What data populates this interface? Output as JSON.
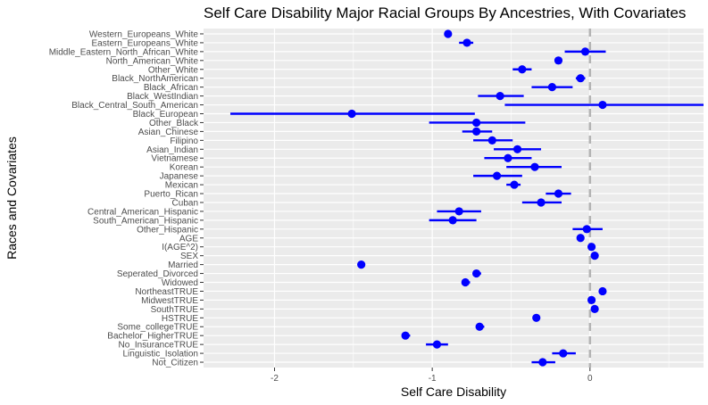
{
  "chart_data": {
    "type": "dot-whisker",
    "title": "Self Care Disability Major Racial Groups By Ancestries, With Covariates",
    "xlabel": "Self Care Disability",
    "ylabel": "Races and Covariates",
    "xlim": [
      -2.45,
      0.72
    ],
    "xticks": [
      -2,
      -1,
      0
    ],
    "reference_line": 0,
    "grid": true,
    "colors": {
      "panel": "#ebebeb",
      "grid": "#ffffff",
      "marker": "#0000ff",
      "reference": "#b3b3b3"
    },
    "points": [
      {
        "label": "Western_Europeans_White",
        "estimate": -0.9,
        "lower": -0.9,
        "upper": -0.9
      },
      {
        "label": "Eastern_Europeans_White",
        "estimate": -0.78,
        "lower": -0.83,
        "upper": -0.74
      },
      {
        "label": "Middle_Eastern_North_African_White",
        "estimate": -0.03,
        "lower": -0.16,
        "upper": 0.1
      },
      {
        "label": "North_American_White",
        "estimate": -0.2,
        "lower": -0.22,
        "upper": -0.18
      },
      {
        "label": "Other_White",
        "estimate": -0.43,
        "lower": -0.49,
        "upper": -0.37
      },
      {
        "label": "Black_NorthAmerican",
        "estimate": -0.06,
        "lower": -0.09,
        "upper": -0.03
      },
      {
        "label": "Black_African",
        "estimate": -0.24,
        "lower": -0.37,
        "upper": -0.11
      },
      {
        "label": "Black_WestIndian",
        "estimate": -0.57,
        "lower": -0.71,
        "upper": -0.42
      },
      {
        "label": "Black_Central_South_American",
        "estimate": 0.08,
        "lower": -0.54,
        "upper": 0.72
      },
      {
        "label": "Black_European",
        "estimate": -1.51,
        "lower": -2.28,
        "upper": -0.73
      },
      {
        "label": "Other_Black",
        "estimate": -0.72,
        "lower": -1.02,
        "upper": -0.41
      },
      {
        "label": "Asian_Chinese",
        "estimate": -0.72,
        "lower": -0.81,
        "upper": -0.62
      },
      {
        "label": "Filipino",
        "estimate": -0.62,
        "lower": -0.74,
        "upper": -0.49
      },
      {
        "label": "Asian_Indian",
        "estimate": -0.46,
        "lower": -0.61,
        "upper": -0.31
      },
      {
        "label": "Vietnamese",
        "estimate": -0.52,
        "lower": -0.67,
        "upper": -0.37
      },
      {
        "label": "Korean",
        "estimate": -0.35,
        "lower": -0.53,
        "upper": -0.18
      },
      {
        "label": "Japanese",
        "estimate": -0.59,
        "lower": -0.74,
        "upper": -0.43
      },
      {
        "label": "Mexican",
        "estimate": -0.48,
        "lower": -0.53,
        "upper": -0.44
      },
      {
        "label": "Puerto_Rican",
        "estimate": -0.2,
        "lower": -0.28,
        "upper": -0.12
      },
      {
        "label": "Cuban",
        "estimate": -0.31,
        "lower": -0.43,
        "upper": -0.18
      },
      {
        "label": "Central_American_Hispanic",
        "estimate": -0.83,
        "lower": -0.97,
        "upper": -0.69
      },
      {
        "label": "South_American_Hispanic",
        "estimate": -0.87,
        "lower": -1.02,
        "upper": -0.72
      },
      {
        "label": "Other_Hispanic",
        "estimate": -0.02,
        "lower": -0.11,
        "upper": 0.08
      },
      {
        "label": "AGE",
        "estimate": -0.06,
        "lower": -0.06,
        "upper": -0.06
      },
      {
        "label": "I(AGE^2)",
        "estimate": 0.01,
        "lower": 0.01,
        "upper": 0.01
      },
      {
        "label": "SEX",
        "estimate": 0.03,
        "lower": 0.03,
        "upper": 0.03
      },
      {
        "label": "Married",
        "estimate": -1.45,
        "lower": -1.45,
        "upper": -1.45
      },
      {
        "label": "Seperated_Divorced",
        "estimate": -0.72,
        "lower": -0.74,
        "upper": -0.69
      },
      {
        "label": "Widowed",
        "estimate": -0.79,
        "lower": -0.81,
        "upper": -0.76
      },
      {
        "label": "NortheastTRUE",
        "estimate": 0.08,
        "lower": 0.06,
        "upper": 0.1
      },
      {
        "label": "MidwestTRUE",
        "estimate": 0.01,
        "lower": -0.01,
        "upper": 0.03
      },
      {
        "label": "SouthTRUE",
        "estimate": 0.03,
        "lower": 0.01,
        "upper": 0.04
      },
      {
        "label": "HSTRUE",
        "estimate": -0.34,
        "lower": -0.35,
        "upper": -0.32
      },
      {
        "label": "Some_collegeTRUE",
        "estimate": -0.7,
        "lower": -0.72,
        "upper": -0.67
      },
      {
        "label": "Bachelor_HigherTRUE",
        "estimate": -1.17,
        "lower": -1.19,
        "upper": -1.14
      },
      {
        "label": "No_InsuranceTRUE",
        "estimate": -0.97,
        "lower": -1.04,
        "upper": -0.9
      },
      {
        "label": "Linguistic_Isolation",
        "estimate": -0.17,
        "lower": -0.24,
        "upper": -0.09
      },
      {
        "label": "Not_Citizen",
        "estimate": -0.3,
        "lower": -0.37,
        "upper": -0.22
      }
    ]
  }
}
